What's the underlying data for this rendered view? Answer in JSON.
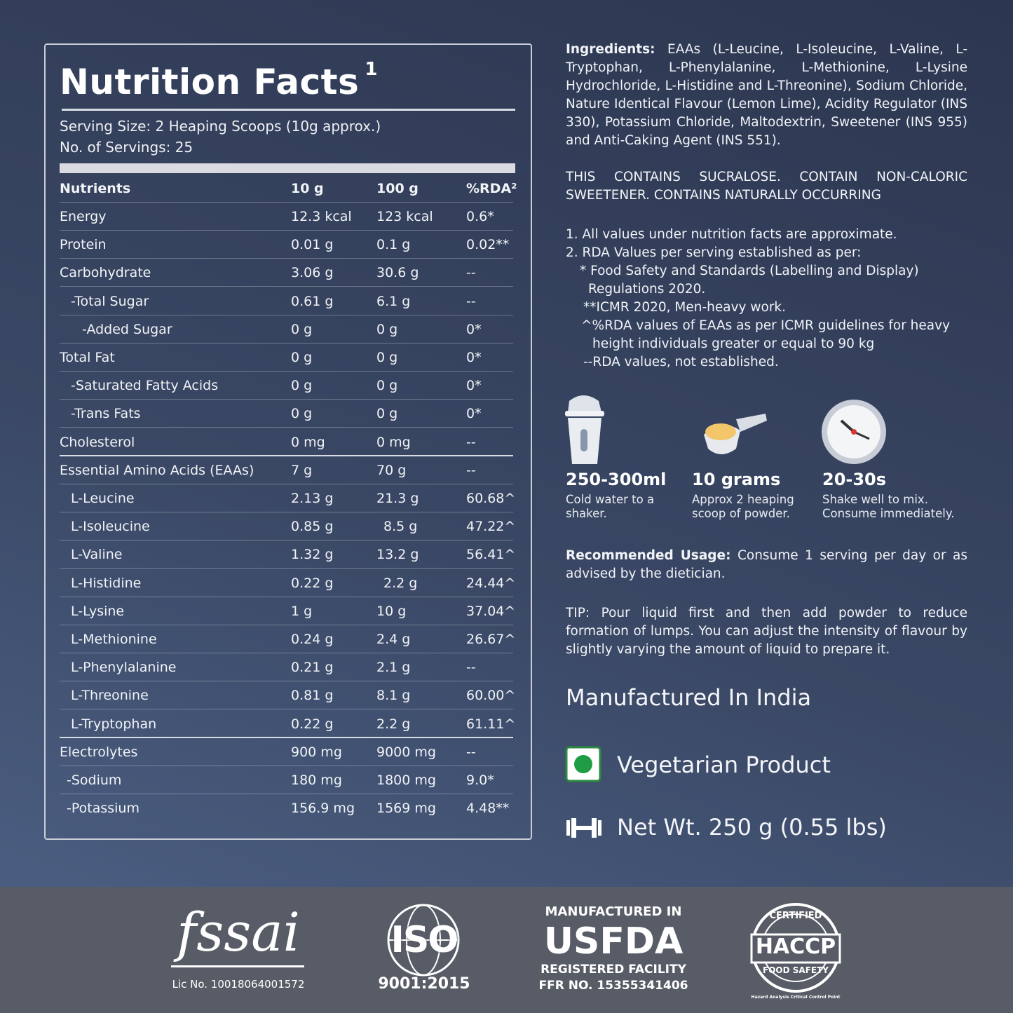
{
  "nutrition": {
    "title": "Nutrition Facts",
    "title_note": "1",
    "serving_size": "Serving Size: 2 Heaping Scoops (10g approx.)",
    "servings": "No. of Servings: 25",
    "header": [
      "Nutrients",
      "10 g",
      "100 g",
      "%RDA²"
    ],
    "rows": [
      [
        "Energy",
        "12.3 kcal",
        "123 kcal",
        "0.6*"
      ],
      [
        "Protein",
        "0.01 g",
        "0.1 g",
        "0.02**"
      ],
      [
        "Carbohydrate",
        "3.06 g",
        "30.6 g",
        "--"
      ],
      [
        "-Total Sugar",
        "0.61 g",
        "6.1 g",
        "--"
      ],
      [
        "-Added Sugar",
        "0 g",
        "0 g",
        "0*"
      ],
      [
        "Total Fat",
        "0 g",
        "0 g",
        "0*"
      ],
      [
        "-Saturated Fatty Acids",
        "0 g",
        "0 g",
        "0*"
      ],
      [
        "-Trans Fats",
        "0 g",
        "0 g",
        "0*"
      ],
      [
        "Cholesterol",
        "0 mg",
        "0 mg",
        "--"
      ],
      [
        "Essential Amino Acids (EAAs)",
        "7 g",
        "70 g",
        "--"
      ],
      [
        "L-Leucine",
        "2.13 g",
        "21.3 g",
        "60.68^"
      ],
      [
        "L-Isoleucine",
        "0.85 g",
        "8.5 g",
        "47.22^"
      ],
      [
        "L-Valine",
        "1.32 g",
        "13.2 g",
        "56.41^"
      ],
      [
        "L-Histidine",
        "0.22 g",
        "2.2 g",
        "24.44^"
      ],
      [
        "L-Lysine",
        "1 g",
        "10 g",
        "37.04^"
      ],
      [
        "L-Methionine",
        "0.24 g",
        "2.4 g",
        "26.67^"
      ],
      [
        "L-Phenylalanine",
        "0.21 g",
        "2.1 g",
        "--"
      ],
      [
        "L-Threonine",
        "0.81 g",
        "8.1 g",
        "60.00^"
      ],
      [
        "L-Tryptophan",
        "0.22 g",
        "2.2 g",
        "61.11^"
      ],
      [
        "Electrolytes",
        "900 mg",
        "9000 mg",
        "--"
      ],
      [
        "-Sodium",
        "180 mg",
        "1800 mg",
        "9.0*"
      ],
      [
        "-Potassium",
        "156.9 mg",
        "1569 mg",
        "4.48**"
      ]
    ]
  },
  "info": {
    "ingredients_label": "Ingredients:",
    "ingredients": "EAAs (L-Leucine, L-Isoleucine, L-Valine, L-Tryptophan, L-Phenylalanine, L-Methionine, L-Lysine Hydrochloride, L-Histidine and L-Threonine), Sodium Chloride, Nature Identical Flavour (Lemon Lime), Acidity Regulator (INS 330), Potassium Chloride, Maltodextrin, Sweetener (INS 955) and Anti-Caking Agent (INS 551).",
    "notice": "THIS CONTAINS SUCRALOSE. CONTAIN NON-CALORIC SWEETENER. CONTAINS NATURALLY OCCURRING",
    "notes": [
      "1. All values under nutrition facts are approximate.",
      "2. RDA Values per serving established as per:",
      "* Food Safety and Standards (Labelling and Display) Regulations 2020.",
      "**ICMR 2020, Men-heavy work.",
      "^%RDA values of EAAs as per ICMR guidelines for heavy height individuals greater or equal to 90 kg",
      "--RDA values, not established."
    ],
    "steps": [
      {
        "value": "250-300ml",
        "text": "Cold water to a shaker."
      },
      {
        "value": "10 grams",
        "text": "Approx 2 heaping scoop of powder."
      },
      {
        "value": "20-30s",
        "text": "Shake well to mix. Consume immediately."
      }
    ],
    "usage_label": "Recommended Usage:",
    "usage": "Consume 1 serving per day or as advised by the dietician.",
    "tip": "TIP: Pour liquid first and then add powder to reduce formation of lumps. You can adjust the intensity of flavour by slightly varying the amount of liquid to prepare it.",
    "origin": "Manufactured In India",
    "veg": "Vegetarian Product",
    "net_weight": "Net Wt. 250 g (0.55 lbs)"
  },
  "footer": {
    "fssai": "fssai",
    "fssai_license": "Lic No. 10018064001572",
    "iso": "ISO",
    "iso_number": "9001:2015",
    "usfda_top": "MANUFACTURED IN",
    "usfda": "USFDA",
    "usfda_sub": "REGISTERED FACILITY",
    "usfda_number": "FFR NO. 15355341406",
    "haccp_top": "CERTIFIED",
    "haccp": "HACCP",
    "haccp_sub": "FOOD SAFETY",
    "haccp_ring": "Hazard Analysis Critical Control Point"
  }
}
